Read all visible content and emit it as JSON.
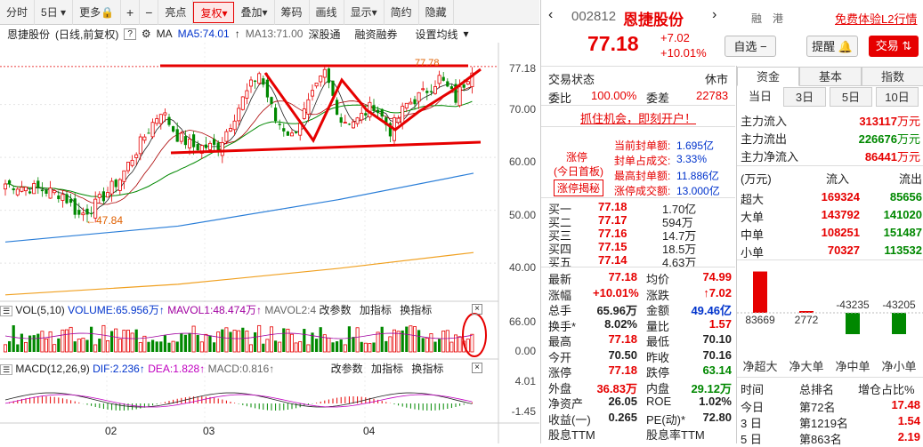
{
  "toolbar": {
    "items": [
      "分时",
      "5日",
      "更多",
      "复权",
      "叠加",
      "筹码",
      "画线",
      "显示",
      "简约",
      "隐藏"
    ],
    "more_label": "更多",
    "zoom_in": "+",
    "zoom_out": "−",
    "liangdian": "亮点"
  },
  "header": {
    "name": "恩捷股份",
    "mode": "(日线,前复权)",
    "ma_label": "MA",
    "ma5": "MA5:74.01",
    "ma13": "MA13:71.00",
    "tab1": "深股通",
    "tab2": "融资融券",
    "settings": "设置均线"
  },
  "price_axis": [
    "77.18",
    "70.00",
    "60.00",
    "50.00",
    "40.00"
  ],
  "low_label": "47.84",
  "high_label": "77.78",
  "vol": {
    "title": "VOL(5,10)",
    "volume": "VOLUME:65.956万",
    "mavol1": "MAVOL1:48.474万",
    "mavol2": "MAVOL2:4",
    "btn1": "改参数",
    "btn2": "加指标",
    "btn3": "换指标",
    "axis": [
      "66.00",
      "0.00"
    ]
  },
  "macd": {
    "title": "MACD(12,26,9)",
    "dif": "DIF:2.236",
    "dea": "DEA:1.828",
    "macd": "MACD:0.816",
    "btn1": "改参数",
    "btn2": "加指标",
    "btn3": "换指标",
    "axis": [
      "4.01",
      "-1.45"
    ]
  },
  "x_labels": [
    "02",
    "03",
    "04"
  ],
  "stock": {
    "code": "002812",
    "name": "恩捷股份",
    "price": "77.18",
    "change": "+7.02",
    "pct": "+10.01%",
    "tag1": "融",
    "tag2": "港",
    "l2": "免费体验L2行情",
    "zixuan": "自选",
    "tixing": "提醒",
    "trade": "交易"
  },
  "status": {
    "label": "交易状态",
    "value": "休市",
    "weibi_l": "委比",
    "weibi": "100.00%",
    "weicha_l": "委差",
    "weicha": "22783"
  },
  "promo": "抓住机会，即刻开户！",
  "limit": {
    "title": "涨停",
    "sub": "(今日首板)",
    "secret": "涨停揭秘",
    "r1l": "当前封单额:",
    "r1": "1.695亿",
    "r2l": "封单占成交:",
    "r2": "3.33%",
    "r3l": "最高封单额:",
    "r3": "11.886亿",
    "r4l": "涨停成交额:",
    "r4": "13.000亿"
  },
  "bids": [
    {
      "l": "买一",
      "p": "77.18",
      "v": "1.70亿"
    },
    {
      "l": "买二",
      "p": "77.17",
      "v": "594万"
    },
    {
      "l": "买三",
      "p": "77.16",
      "v": "14.7万"
    },
    {
      "l": "买四",
      "p": "77.15",
      "v": "18.5万"
    },
    {
      "l": "买五",
      "p": "77.14",
      "v": "4.63万"
    }
  ],
  "quote": [
    {
      "l1": "最新",
      "v1": "77.18",
      "c1": "red",
      "l2": "均价",
      "v2": "74.99",
      "c2": "red"
    },
    {
      "l1": "涨幅",
      "v1": "+10.01%",
      "c1": "red",
      "l2": "涨跌",
      "v2": "↑7.02",
      "c2": "red"
    },
    {
      "l1": "总手",
      "v1": "65.96万",
      "c1": "",
      "l2": "金额",
      "v2": "49.46亿",
      "c2": "blue"
    },
    {
      "l1": "换手*",
      "v1": "8.02%",
      "c1": "",
      "l2": "量比",
      "v2": "1.57",
      "c2": "red"
    },
    {
      "l1": "最高",
      "v1": "77.18",
      "c1": "red",
      "l2": "最低",
      "v2": "70.10",
      "c2": ""
    },
    {
      "l1": "今开",
      "v1": "70.50",
      "c1": "",
      "l2": "昨收",
      "v2": "70.16",
      "c2": ""
    },
    {
      "l1": "涨停",
      "v1": "77.18",
      "c1": "red",
      "l2": "跌停",
      "v2": "63.14",
      "c2": "green"
    },
    {
      "l1": "外盘",
      "v1": "36.83万",
      "c1": "red",
      "l2": "内盘",
      "v2": "29.12万",
      "c2": "green"
    },
    {
      "l1": "净资产",
      "v1": "26.05",
      "c1": "",
      "l2": "ROE",
      "v2": "1.02%",
      "c2": ""
    },
    {
      "l1": "收益(一)",
      "v1": "0.265",
      "c1": "",
      "l2": "PE(动)*",
      "v2": "72.80",
      "c2": ""
    },
    {
      "l1": "股息TTM",
      "v1": "",
      "c1": "",
      "l2": "股息率TTM",
      "v2": "",
      "c2": ""
    }
  ],
  "fund": {
    "tabs": [
      "资金",
      "基本",
      "指数"
    ],
    "periods": [
      "当日",
      "3日",
      "5日",
      "10日"
    ],
    "main": [
      {
        "l": "主力流入",
        "v": "313117万元",
        "c": "red"
      },
      {
        "l": "主力流出",
        "v": "226676万元",
        "c": "green"
      },
      {
        "l": "主力净流入",
        "v": "86441万元",
        "c": "red"
      }
    ],
    "head": {
      "unit": "(万元)",
      "in": "流入",
      "out": "流出"
    },
    "rows": [
      {
        "l": "超大",
        "i": "169324",
        "o": "85656"
      },
      {
        "l": "大单",
        "i": "143792",
        "o": "141020"
      },
      {
        "l": "中单",
        "i": "108251",
        "o": "151487"
      },
      {
        "l": "小单",
        "i": "70327",
        "o": "113532"
      }
    ],
    "bars": [
      {
        "label": "净超大",
        "value": 83669,
        "text": "83669"
      },
      {
        "label": "净大单",
        "value": 2772,
        "text": "2772"
      },
      {
        "label": "净中单",
        "value": -43235,
        "text": "-43235"
      },
      {
        "label": "净小单",
        "value": -43205,
        "text": "-43205"
      }
    ],
    "rank_head": {
      "a": "时间",
      "b": "总排名",
      "c": "增仓占比%"
    },
    "rank": [
      {
        "t": "今日",
        "r": "第72名",
        "p": "17.48"
      },
      {
        "t": "3 日",
        "r": "第1219名",
        "p": "1.54"
      },
      {
        "t": "5 日",
        "r": "第863名",
        "p": "2.19"
      }
    ]
  },
  "colors": {
    "up": "#e60000",
    "down": "#008800",
    "accent": "#e60000"
  }
}
